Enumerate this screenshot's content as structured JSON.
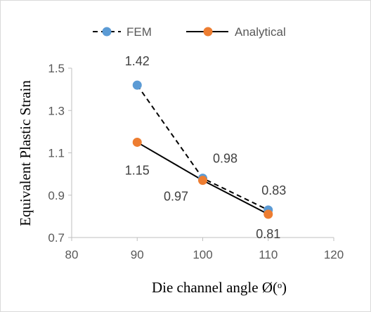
{
  "chart_data": {
    "type": "line",
    "title": "",
    "xlabel": "Die channel angle Ø(ᵒ)",
    "ylabel": "Equivalent Plastic Strain",
    "xlim": [
      80,
      120
    ],
    "ylim": [
      0.7,
      1.5
    ],
    "x_ticks": [
      80,
      90,
      100,
      110,
      120
    ],
    "y_ticks": [
      0.7,
      0.9,
      1.1,
      1.3,
      1.5
    ],
    "x_tick_labels": [
      "80",
      "90",
      "100",
      "110",
      "120"
    ],
    "y_tick_labels": [
      "0.7",
      "0.9",
      "1.1",
      "1.3",
      "1.5"
    ],
    "grid": false,
    "legend_position": "top",
    "series": [
      {
        "name": "FEM",
        "x": [
          90,
          100,
          110
        ],
        "values": [
          1.42,
          0.98,
          0.83
        ],
        "labels": [
          "1.42",
          "0.98",
          "0.83"
        ],
        "color": "#5B9BD5",
        "line_style": "dashed",
        "line_color": "#000000"
      },
      {
        "name": "Analytical",
        "x": [
          90,
          100,
          110
        ],
        "values": [
          1.15,
          0.97,
          0.81
        ],
        "labels": [
          "1.15",
          "0.97",
          "0.81"
        ],
        "color": "#ED7D31",
        "line_style": "solid",
        "line_color": "#000000"
      }
    ]
  }
}
